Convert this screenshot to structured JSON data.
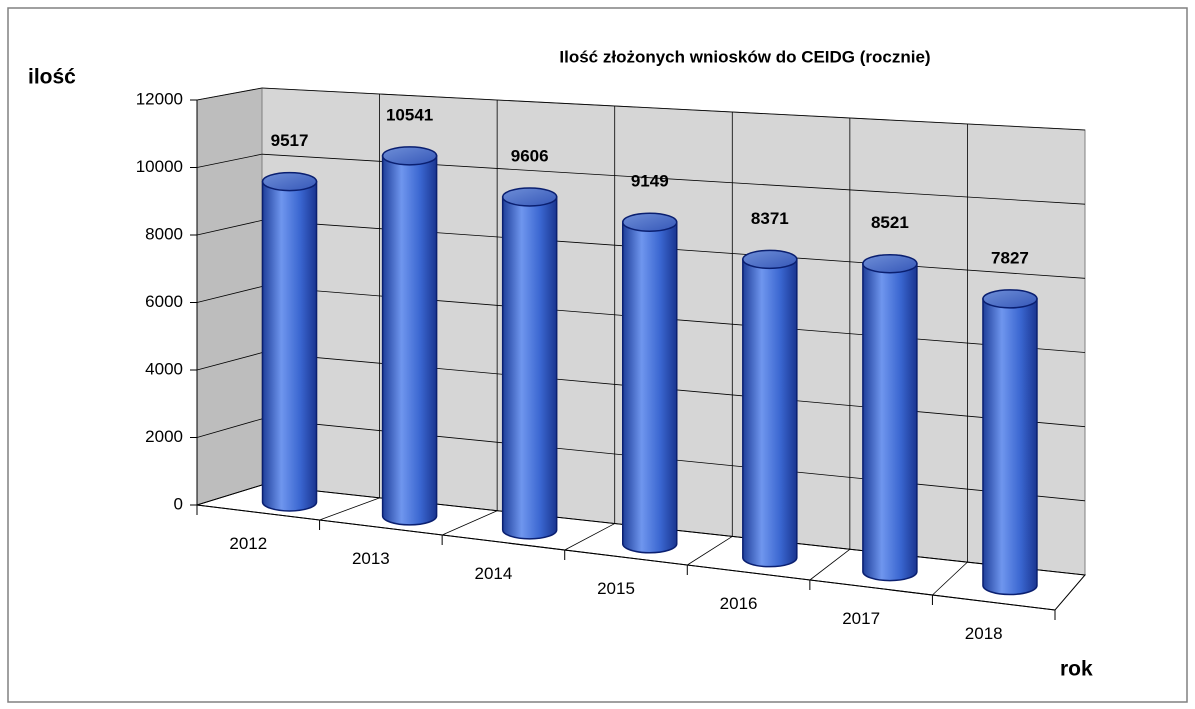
{
  "chart_data": {
    "type": "bar3d",
    "title": "Ilość złożonych wniosków do CEIDG (rocznie)",
    "y_label": "ilość",
    "x_label": "rok",
    "categories": [
      "2012",
      "2013",
      "2014",
      "2015",
      "2016",
      "2017",
      "2018"
    ],
    "values": [
      9517,
      10541,
      9606,
      9149,
      8371,
      8521,
      7827
    ],
    "color": "#3a66d0",
    "label_color": "#ff0000",
    "ylim": [
      0,
      12000
    ],
    "yticks": [
      0,
      2000,
      4000,
      6000,
      8000,
      10000,
      12000
    ],
    "grid": true
  }
}
